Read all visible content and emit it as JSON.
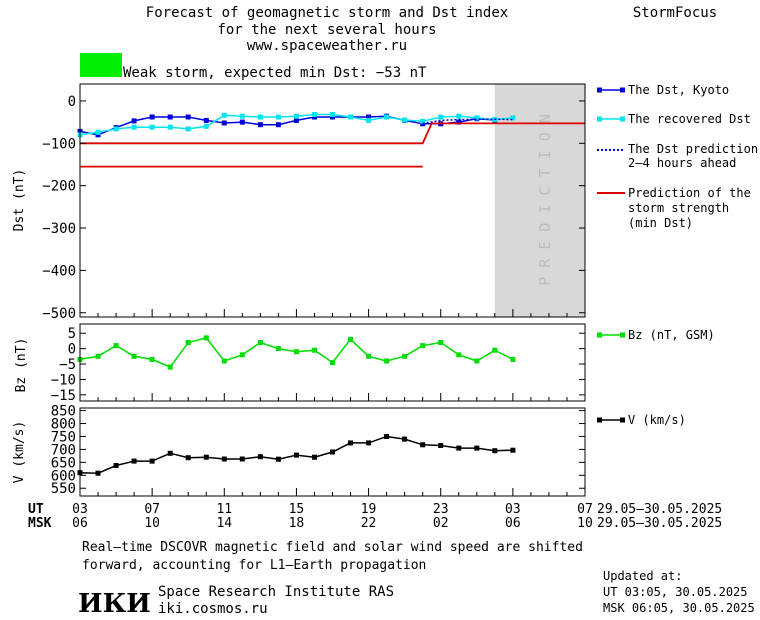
{
  "header": {
    "title_line1": "Forecast of geomagnetic storm and Dst index",
    "title_line2": "for the next several hours",
    "website": "www.spaceweather.ru",
    "brand": "StormFocus",
    "status_color": "#00ee00",
    "status_text": "Weak storm, expected min Dst: −53 nT"
  },
  "legend": {
    "dst_kyoto": "The Dst, Kyoto",
    "recovered_line1": "The recovered Dst",
    "prediction_line1": "The Dst prediction",
    "prediction_line2": "2–4 hours ahead",
    "strength_line1": "Prediction of the",
    "strength_line2": "storm strength",
    "strength_line3": "(min Dst)",
    "bz": "Bz (nT, GSM)",
    "v": "V (km/s)"
  },
  "prediction_label": "P R E D I C T I O N",
  "time_axis": {
    "ut_label": "UT",
    "msk_label": "MSK",
    "ut_ticks": [
      "03",
      "07",
      "11",
      "15",
      "19",
      "23",
      "03",
      "07"
    ],
    "msk_ticks": [
      "06",
      "10",
      "14",
      "18",
      "22",
      "02",
      "06",
      "10"
    ],
    "ut_range": "29.05–30.05.2025",
    "msk_range": "29.05–30.05.2025"
  },
  "footer": {
    "note_line1": "Real–time DSCOVR magnetic field and solar wind speed are shifted",
    "note_line2": "forward, accounting for L1–Earth propagation",
    "logo_text": "ИКИ",
    "institute": "Space Research Institute RAS",
    "institute_url": "iki.cosmos.ru",
    "updated_label": "Updated at:",
    "updated_ut": "UT   03:05, 30.05.2025",
    "updated_msk": "MSK 06:05, 30.05.2025"
  },
  "chart_data": [
    {
      "type": "line",
      "ylabel": "Dst (nT)",
      "ylim": [
        -510,
        40
      ],
      "xlim": [
        3,
        31
      ],
      "yticks": [
        0,
        -100,
        -200,
        -300,
        -400,
        -500
      ],
      "ytick_labels": [
        "0",
        "−100",
        "−200",
        "−300",
        "−400",
        "−500"
      ],
      "prediction_region_x": [
        26,
        31
      ],
      "series": [
        {
          "name": "The Dst, Kyoto",
          "color": "#0000dd",
          "x": [
            3,
            4,
            5,
            6,
            7,
            8,
            9,
            10,
            11,
            12,
            13,
            14,
            15,
            16,
            17,
            18,
            19,
            20,
            21,
            22,
            23,
            24,
            25,
            26
          ],
          "values": [
            -72,
            -80,
            -63,
            -47,
            -38,
            -38,
            -38,
            -46,
            -52,
            -50,
            -56,
            -56,
            -46,
            -38,
            -38,
            -38,
            -38,
            -36,
            -46,
            -54,
            -54,
            -50,
            -42,
            -45
          ]
        },
        {
          "name": "The recovered Dst",
          "color": "#00e5ee",
          "x": [
            3,
            4,
            5,
            6,
            7,
            8,
            9,
            10,
            11,
            12,
            13,
            14,
            15,
            16,
            17,
            18,
            19,
            20,
            21,
            22,
            23,
            24,
            25,
            26,
            27
          ],
          "values": [
            -80,
            -74,
            -66,
            -62,
            -62,
            -62,
            -66,
            -60,
            -34,
            -36,
            -38,
            -38,
            -36,
            -32,
            -32,
            -38,
            -46,
            -38,
            -45,
            -48,
            -38,
            -36,
            -40,
            -44,
            -40
          ]
        },
        {
          "name": "The Dst prediction 2–4 hours ahead",
          "color": "#0000dd",
          "x": [
            22,
            23,
            24,
            25,
            26,
            27
          ],
          "values": [
            -53,
            -46,
            -44,
            -43,
            -43,
            -44
          ]
        },
        {
          "name": "Prediction of the storm strength (min Dst)",
          "color": "#dd0000",
          "x": [
            3,
            22,
            22.5,
            31
          ],
          "values": [
            -100,
            -100,
            -53,
            -53
          ]
        },
        {
          "name": "",
          "color": "#dd0000",
          "x": [
            3,
            22
          ],
          "values": [
            -155,
            -155
          ]
        }
      ]
    },
    {
      "type": "line",
      "ylabel": "Bz (nT)",
      "ylim": [
        -17,
        8
      ],
      "xlim": [
        3,
        31
      ],
      "yticks": [
        5,
        0,
        -5,
        -10,
        -15
      ],
      "ytick_labels": [
        "5",
        "0",
        "−5",
        "−10",
        "−15"
      ],
      "series": [
        {
          "name": "Bz (nT, GSM)",
          "color": "#00dd00",
          "x": [
            3,
            4,
            5,
            6,
            7,
            8,
            9,
            10,
            11,
            12,
            13,
            14,
            15,
            16,
            17,
            18,
            19,
            20,
            21,
            22,
            23,
            24,
            25,
            26,
            27
          ],
          "values": [
            -3.5,
            -2.5,
            1,
            -2.5,
            -3.5,
            -6,
            2,
            3.5,
            -4,
            -2,
            2,
            0,
            -1,
            -0.5,
            -4.5,
            3,
            -2.5,
            -4,
            -2.5,
            1,
            2,
            -2,
            -4,
            -0.5,
            -3.5
          ]
        }
      ]
    },
    {
      "type": "line",
      "ylabel": "V (km/s)",
      "ylim": [
        520,
        860
      ],
      "xlim": [
        3,
        31
      ],
      "yticks": [
        850,
        800,
        750,
        700,
        650,
        600,
        550
      ],
      "ytick_labels": [
        "850",
        "800",
        "750",
        "700",
        "650",
        "600",
        "550"
      ],
      "series": [
        {
          "name": "V (km/s)",
          "color": "#000000",
          "x": [
            3,
            4,
            5,
            6,
            7,
            8,
            9,
            10,
            11,
            12,
            13,
            14,
            15,
            16,
            17,
            18,
            19,
            20,
            21,
            22,
            23,
            24,
            25,
            26,
            27
          ],
          "values": [
            610,
            608,
            638,
            655,
            655,
            685,
            668,
            670,
            663,
            663,
            672,
            662,
            678,
            670,
            690,
            725,
            725,
            750,
            740,
            718,
            715,
            705,
            705,
            695,
            697
          ]
        }
      ]
    }
  ]
}
